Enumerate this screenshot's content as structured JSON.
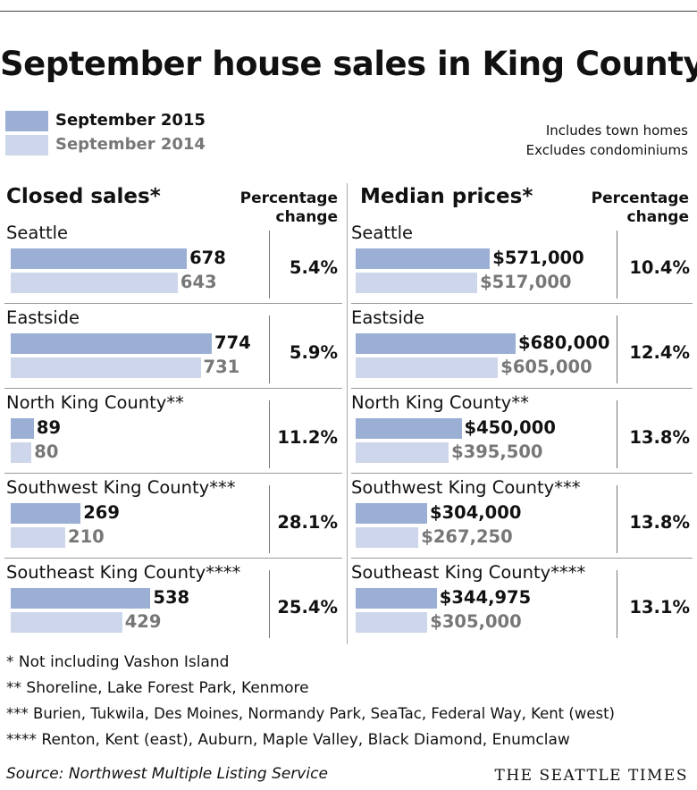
{
  "title": "September house sales in King County",
  "legend": {
    "current": {
      "label": "September 2015",
      "color": "#9bafd4"
    },
    "previous": {
      "label": "September 2014",
      "color": "#cdd6ea"
    }
  },
  "notes": [
    "Includes town homes",
    "Excludes condominiums"
  ],
  "colors": {
    "current_value_text": "#111111",
    "previous_value_text": "#777777"
  },
  "chart_data": [
    {
      "type": "bar",
      "orientation": "horizontal",
      "title": "Closed sales*",
      "pct_header": [
        "Percentage",
        "change"
      ],
      "categories": [
        "Seattle",
        "Eastside",
        "North King County**",
        "Southwest King County***",
        "Southeast King County****"
      ],
      "series": [
        {
          "name": "September 2015",
          "values": [
            678,
            774,
            89,
            269,
            538
          ],
          "labels": [
            "678",
            "774",
            "89",
            "269",
            "538"
          ]
        },
        {
          "name": "September 2014",
          "values": [
            643,
            731,
            80,
            210,
            429
          ],
          "labels": [
            "643",
            "731",
            "80",
            "210",
            "429"
          ]
        }
      ],
      "pct_change": [
        "5.4%",
        "5.9%",
        "11.2%",
        "28.1%",
        "25.4%"
      ],
      "xlim": [
        0,
        774
      ]
    },
    {
      "type": "bar",
      "orientation": "horizontal",
      "title": "Median prices*",
      "pct_header": [
        "Percentage",
        "change"
      ],
      "categories": [
        "Seattle",
        "Eastside",
        "North King County**",
        "Southwest King County***",
        "Southeast King County****"
      ],
      "series": [
        {
          "name": "September 2015",
          "values": [
            571000,
            680000,
            450000,
            304000,
            344975
          ],
          "labels": [
            "$571,000",
            "$680,000",
            "$450,000",
            "$304,000",
            "$344,975"
          ]
        },
        {
          "name": "September 2014",
          "values": [
            517000,
            605000,
            395500,
            267250,
            305000
          ],
          "labels": [
            "$517,000",
            "$605,000",
            "$395,500",
            "$267,250",
            "$305,000"
          ]
        }
      ],
      "pct_change": [
        "10.4%",
        "12.4%",
        "13.8%",
        "13.8%",
        "13.1%"
      ],
      "xlim": [
        0,
        680000
      ]
    }
  ],
  "footnotes": [
    "* Not including Vashon Island",
    "**  Shoreline, Lake Forest Park, Kenmore",
    "*** Burien, Tukwila, Des Moines, Normandy Park, SeaTac, Federal Way, Kent (west)",
    "**** Renton, Kent (east), Auburn, Maple Valley, Black Diamond, Enumclaw"
  ],
  "source": "Source: Northwest Multiple Listing Service",
  "credit": "THE SEATTLE TIMES"
}
